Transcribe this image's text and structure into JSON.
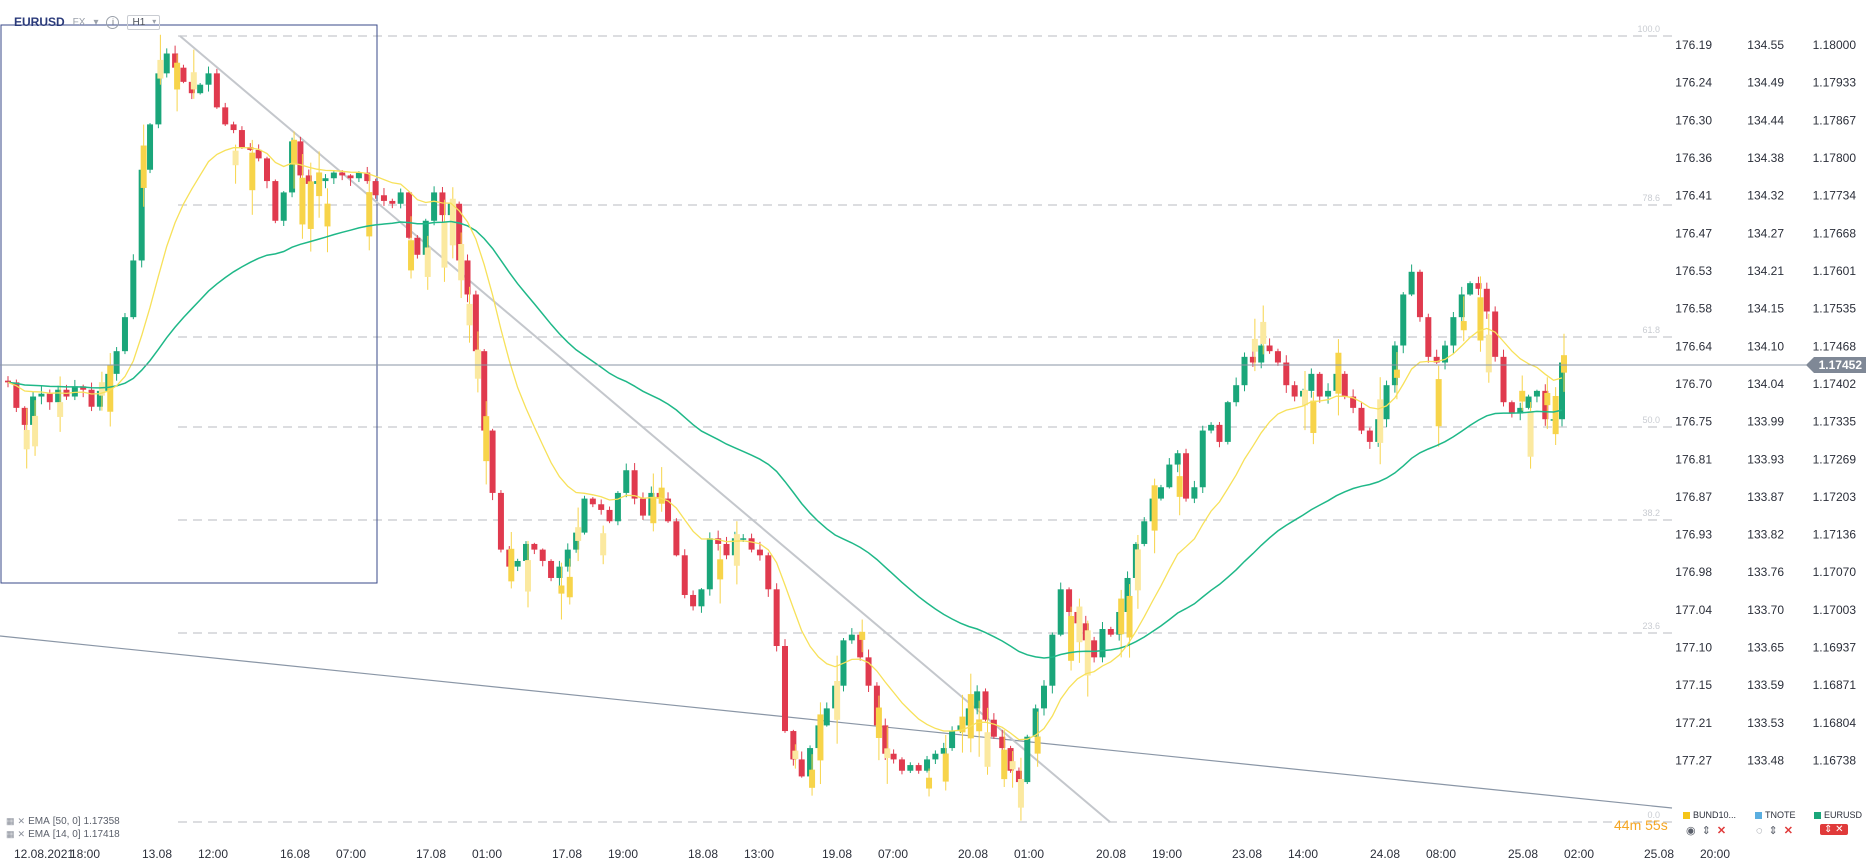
{
  "header": {
    "symbol": "EURUSD",
    "market_tag": "FX",
    "info_icon": "info-circle-icon",
    "timeframe": "H1",
    "timeframe_icon": "chevron-down-icon"
  },
  "chart_data": {
    "type": "candlestick",
    "x_tick_labels": [
      "12.08.2021",
      "18:00",
      "13.08",
      "12:00",
      "16.08",
      "07:00",
      "17.08",
      "01:00",
      "17.08",
      "19:00",
      "18.08",
      "13:00",
      "19.08",
      "07:00",
      "20.08",
      "01:00",
      "20.08",
      "19:00",
      "23.08",
      "14:00",
      "24.08",
      "08:00",
      "25.08",
      "02:00",
      "25.08",
      "20:00"
    ],
    "price_axes": [
      {
        "name": "BUND10",
        "color": "#f5c518",
        "ticks": [
          "176.19",
          "176.24",
          "176.30",
          "176.36",
          "176.41",
          "176.47",
          "176.53",
          "176.58",
          "176.64",
          "176.70",
          "176.75",
          "176.81",
          "176.87",
          "176.93",
          "176.98",
          "177.04",
          "177.10",
          "177.15",
          "177.21",
          "177.27"
        ]
      },
      {
        "name": "TNOTE",
        "color": "#5aaee0",
        "ticks": [
          "134.55",
          "134.49",
          "134.44",
          "134.38",
          "134.32",
          "134.27",
          "134.21",
          "134.15",
          "134.10",
          "134.04",
          "133.99",
          "133.93",
          "133.87",
          "133.82",
          "133.76",
          "133.70",
          "133.65",
          "133.59",
          "133.53",
          "133.48"
        ]
      },
      {
        "name": "EURUSD",
        "color": "#1aa67a",
        "ticks": [
          "1.18000",
          "1.17933",
          "1.17867",
          "1.17800",
          "1.17734",
          "1.17668",
          "1.17601",
          "1.17535",
          "1.17468",
          "1.17402",
          "1.17335",
          "1.17269",
          "1.17203",
          "1.17136",
          "1.17070",
          "1.17003",
          "1.16937",
          "1.16871",
          "1.16804",
          "1.16738"
        ]
      }
    ],
    "current_price": "1.17452",
    "fib_levels": [
      "100.0",
      "78.6",
      "61.8",
      "50.0",
      "38.2",
      "23.6",
      "0.0"
    ],
    "indicators": [
      {
        "label": "EMA",
        "params": "[50, 0]",
        "value": "1.17358",
        "color": "#1fb888"
      },
      {
        "label": "EMA",
        "params": "[14, 0]",
        "value": "1.17418",
        "color": "#f7e15a"
      }
    ],
    "eurusd_close": [
      1.17405,
      1.1736,
      1.1733,
      1.1738,
      1.17385,
      1.1737,
      1.17392,
      1.1738,
      1.17398,
      1.17392,
      1.17362,
      1.1739,
      1.1742,
      1.1746,
      1.1752,
      1.1762,
      1.1778,
      1.1786,
      1.1795,
      1.17985,
      1.1796,
      1.17935,
      1.17915,
      1.1793,
      1.1795,
      1.1789,
      1.1786,
      1.1785,
      1.1782,
      1.17815,
      1.178,
      1.1776,
      1.1769,
      1.1774,
      1.1783,
      1.1777,
      1.17755,
      1.1776,
      1.17765,
      1.17775,
      1.1777,
      1.17765,
      1.17775,
      1.1776,
      1.17735,
      1.17725,
      1.1772,
      1.1774,
      1.1766,
      1.1763,
      1.1769,
      1.1774,
      1.177,
      1.1772,
      1.1762,
      1.1756,
      1.1746,
      1.1732,
      1.1721,
      1.1711,
      1.1708,
      1.1709,
      1.1712,
      1.1711,
      1.1709,
      1.1706,
      1.1708,
      1.1711,
      1.1714,
      1.172,
      1.1719,
      1.1718,
      1.1716,
      1.1721,
      1.1725,
      1.172,
      1.1717,
      1.1721,
      1.172,
      1.1716,
      1.171,
      1.1703,
      1.1701,
      1.1704,
      1.1713,
      1.1712,
      1.171,
      1.1713,
      1.1713,
      1.1711,
      1.171,
      1.1704,
      1.1694,
      1.1679,
      1.1674,
      1.1671,
      1.1676,
      1.168,
      1.1683,
      1.1687,
      1.1695,
      1.1696,
      1.1692,
      1.1687,
      1.168,
      1.1675,
      1.1674,
      1.1672,
      1.1673,
      1.1672,
      1.1674,
      1.1675,
      1.1676,
      1.1679,
      1.168,
      1.1683,
      1.1686,
      1.1681,
      1.1678,
      1.1676,
      1.1672,
      1.167,
      1.1678,
      1.1683,
      1.1687,
      1.1696,
      1.1704,
      1.17,
      1.1698,
      1.1695,
      1.1692,
      1.1697,
      1.1696,
      1.17,
      1.1706,
      1.1712,
      1.1716,
      1.172,
      1.1722,
      1.1726,
      1.1728,
      1.172,
      1.1722,
      1.1732,
      1.1733,
      1.173,
      1.1737,
      1.174,
      1.1745,
      1.1744,
      1.1747,
      1.1746,
      1.1744,
      1.174,
      1.1738,
      1.1739,
      1.1742,
      1.1738,
      1.1739,
      1.1742,
      1.1738,
      1.1736,
      1.1732,
      1.173,
      1.1734,
      1.174,
      1.1747,
      1.1756,
      1.176,
      1.1752,
      1.1745,
      1.1744,
      1.1747,
      1.1752,
      1.1756,
      1.1758,
      1.1757,
      1.1753,
      1.1745,
      1.1737,
      1.1735,
      1.1736,
      1.1738,
      1.1739,
      1.1734,
      1.1734,
      1.1744
    ]
  },
  "legend": [
    {
      "label": "BUND10...",
      "color": "#f5c518"
    },
    {
      "label": "TNOTE",
      "color": "#5aaee0"
    },
    {
      "label": "EURUSD",
      "color": "#1aa67a"
    }
  ],
  "legend_icons": [
    "eye-icon",
    "updown-arrows-icon",
    "close-icon"
  ],
  "countdown": "44m 55s"
}
